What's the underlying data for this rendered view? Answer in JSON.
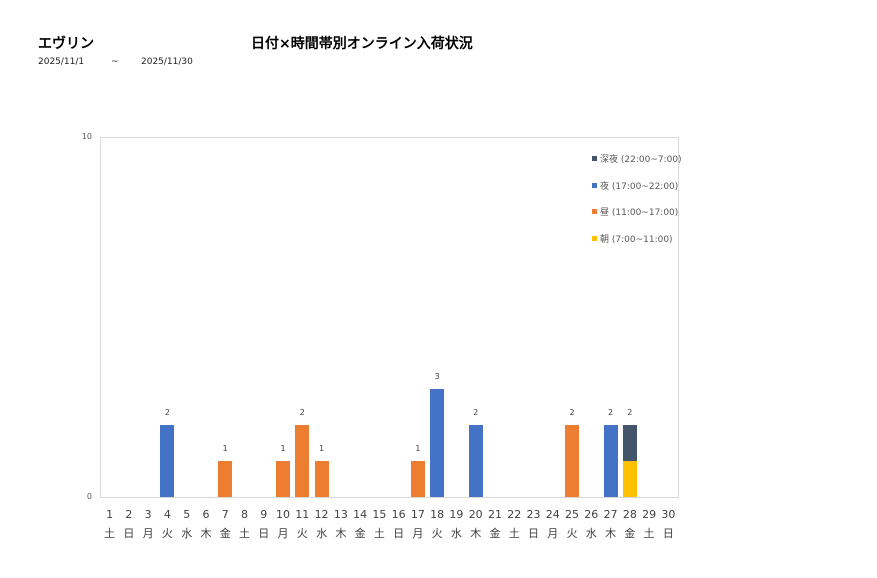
{
  "header": {
    "brand": "エヴリン",
    "title": "日付×時間帯別オンライン入荷状況",
    "date_from": "2025/11/1",
    "date_sep": "~",
    "date_to": "2025/11/30"
  },
  "colors": {
    "shinya": "#44546A",
    "yoru": "#4472C4",
    "hiru": "#ED7D31",
    "asa": "#FFC000"
  },
  "chart_data": {
    "type": "bar",
    "stacked": true,
    "title": "日付×時間帯別オンライン入荷状況",
    "xlabel": "",
    "ylabel": "",
    "ylim": [
      0,
      10
    ],
    "yticks": [
      0,
      10
    ],
    "grid": false,
    "legend_position": "top-right",
    "categories": [
      "1",
      "2",
      "3",
      "4",
      "5",
      "6",
      "7",
      "8",
      "9",
      "10",
      "11",
      "12",
      "13",
      "14",
      "15",
      "16",
      "17",
      "18",
      "19",
      "20",
      "21",
      "22",
      "23",
      "24",
      "25",
      "26",
      "27",
      "28",
      "29",
      "30"
    ],
    "weekdays": [
      "土",
      "日",
      "月",
      "火",
      "水",
      "木",
      "金",
      "土",
      "日",
      "月",
      "火",
      "水",
      "木",
      "金",
      "土",
      "日",
      "月",
      "火",
      "水",
      "木",
      "金",
      "土",
      "日",
      "月",
      "火",
      "水",
      "木",
      "金",
      "土",
      "日"
    ],
    "series": [
      {
        "name": "朝 (7:00~11:00)",
        "key": "asa",
        "color": "#FFC000",
        "values": [
          0,
          0,
          0,
          0,
          0,
          0,
          0,
          0,
          0,
          0,
          0,
          0,
          0,
          0,
          0,
          0,
          0,
          0,
          0,
          0,
          0,
          0,
          0,
          0,
          0,
          0,
          0,
          1,
          0,
          0
        ]
      },
      {
        "name": "昼 (11:00~17:00)",
        "key": "hiru",
        "color": "#ED7D31",
        "values": [
          0,
          0,
          0,
          0,
          0,
          0,
          1,
          0,
          0,
          1,
          2,
          1,
          0,
          0,
          0,
          0,
          1,
          0,
          0,
          0,
          0,
          0,
          0,
          0,
          2,
          0,
          0,
          0,
          0,
          0
        ]
      },
      {
        "name": "夜 (17:00~22:00)",
        "key": "yoru",
        "color": "#4472C4",
        "values": [
          0,
          0,
          0,
          2,
          0,
          0,
          0,
          0,
          0,
          0,
          0,
          0,
          0,
          0,
          0,
          0,
          0,
          3,
          0,
          2,
          0,
          0,
          0,
          0,
          0,
          0,
          2,
          0,
          0,
          0
        ]
      },
      {
        "name": "深夜 (22:00~7:00)",
        "key": "shinya",
        "color": "#44546A",
        "values": [
          0,
          0,
          0,
          0,
          0,
          0,
          0,
          0,
          0,
          0,
          0,
          0,
          0,
          0,
          0,
          0,
          0,
          0,
          0,
          0,
          0,
          0,
          0,
          0,
          0,
          0,
          0,
          1,
          0,
          0
        ]
      }
    ],
    "totals": [
      0,
      0,
      0,
      2,
      0,
      0,
      1,
      0,
      0,
      1,
      2,
      1,
      0,
      0,
      0,
      0,
      1,
      3,
      0,
      2,
      0,
      0,
      0,
      0,
      2,
      0,
      2,
      2,
      0,
      0
    ]
  },
  "legend": [
    {
      "label": "深夜 (22:00~7:00)",
      "color": "#44546A"
    },
    {
      "label": "夜 (17:00~22:00)",
      "color": "#4472C4"
    },
    {
      "label": "昼 (11:00~17:00)",
      "color": "#ED7D31"
    },
    {
      "label": "朝 (7:00~11:00)",
      "color": "#FFC000"
    }
  ]
}
